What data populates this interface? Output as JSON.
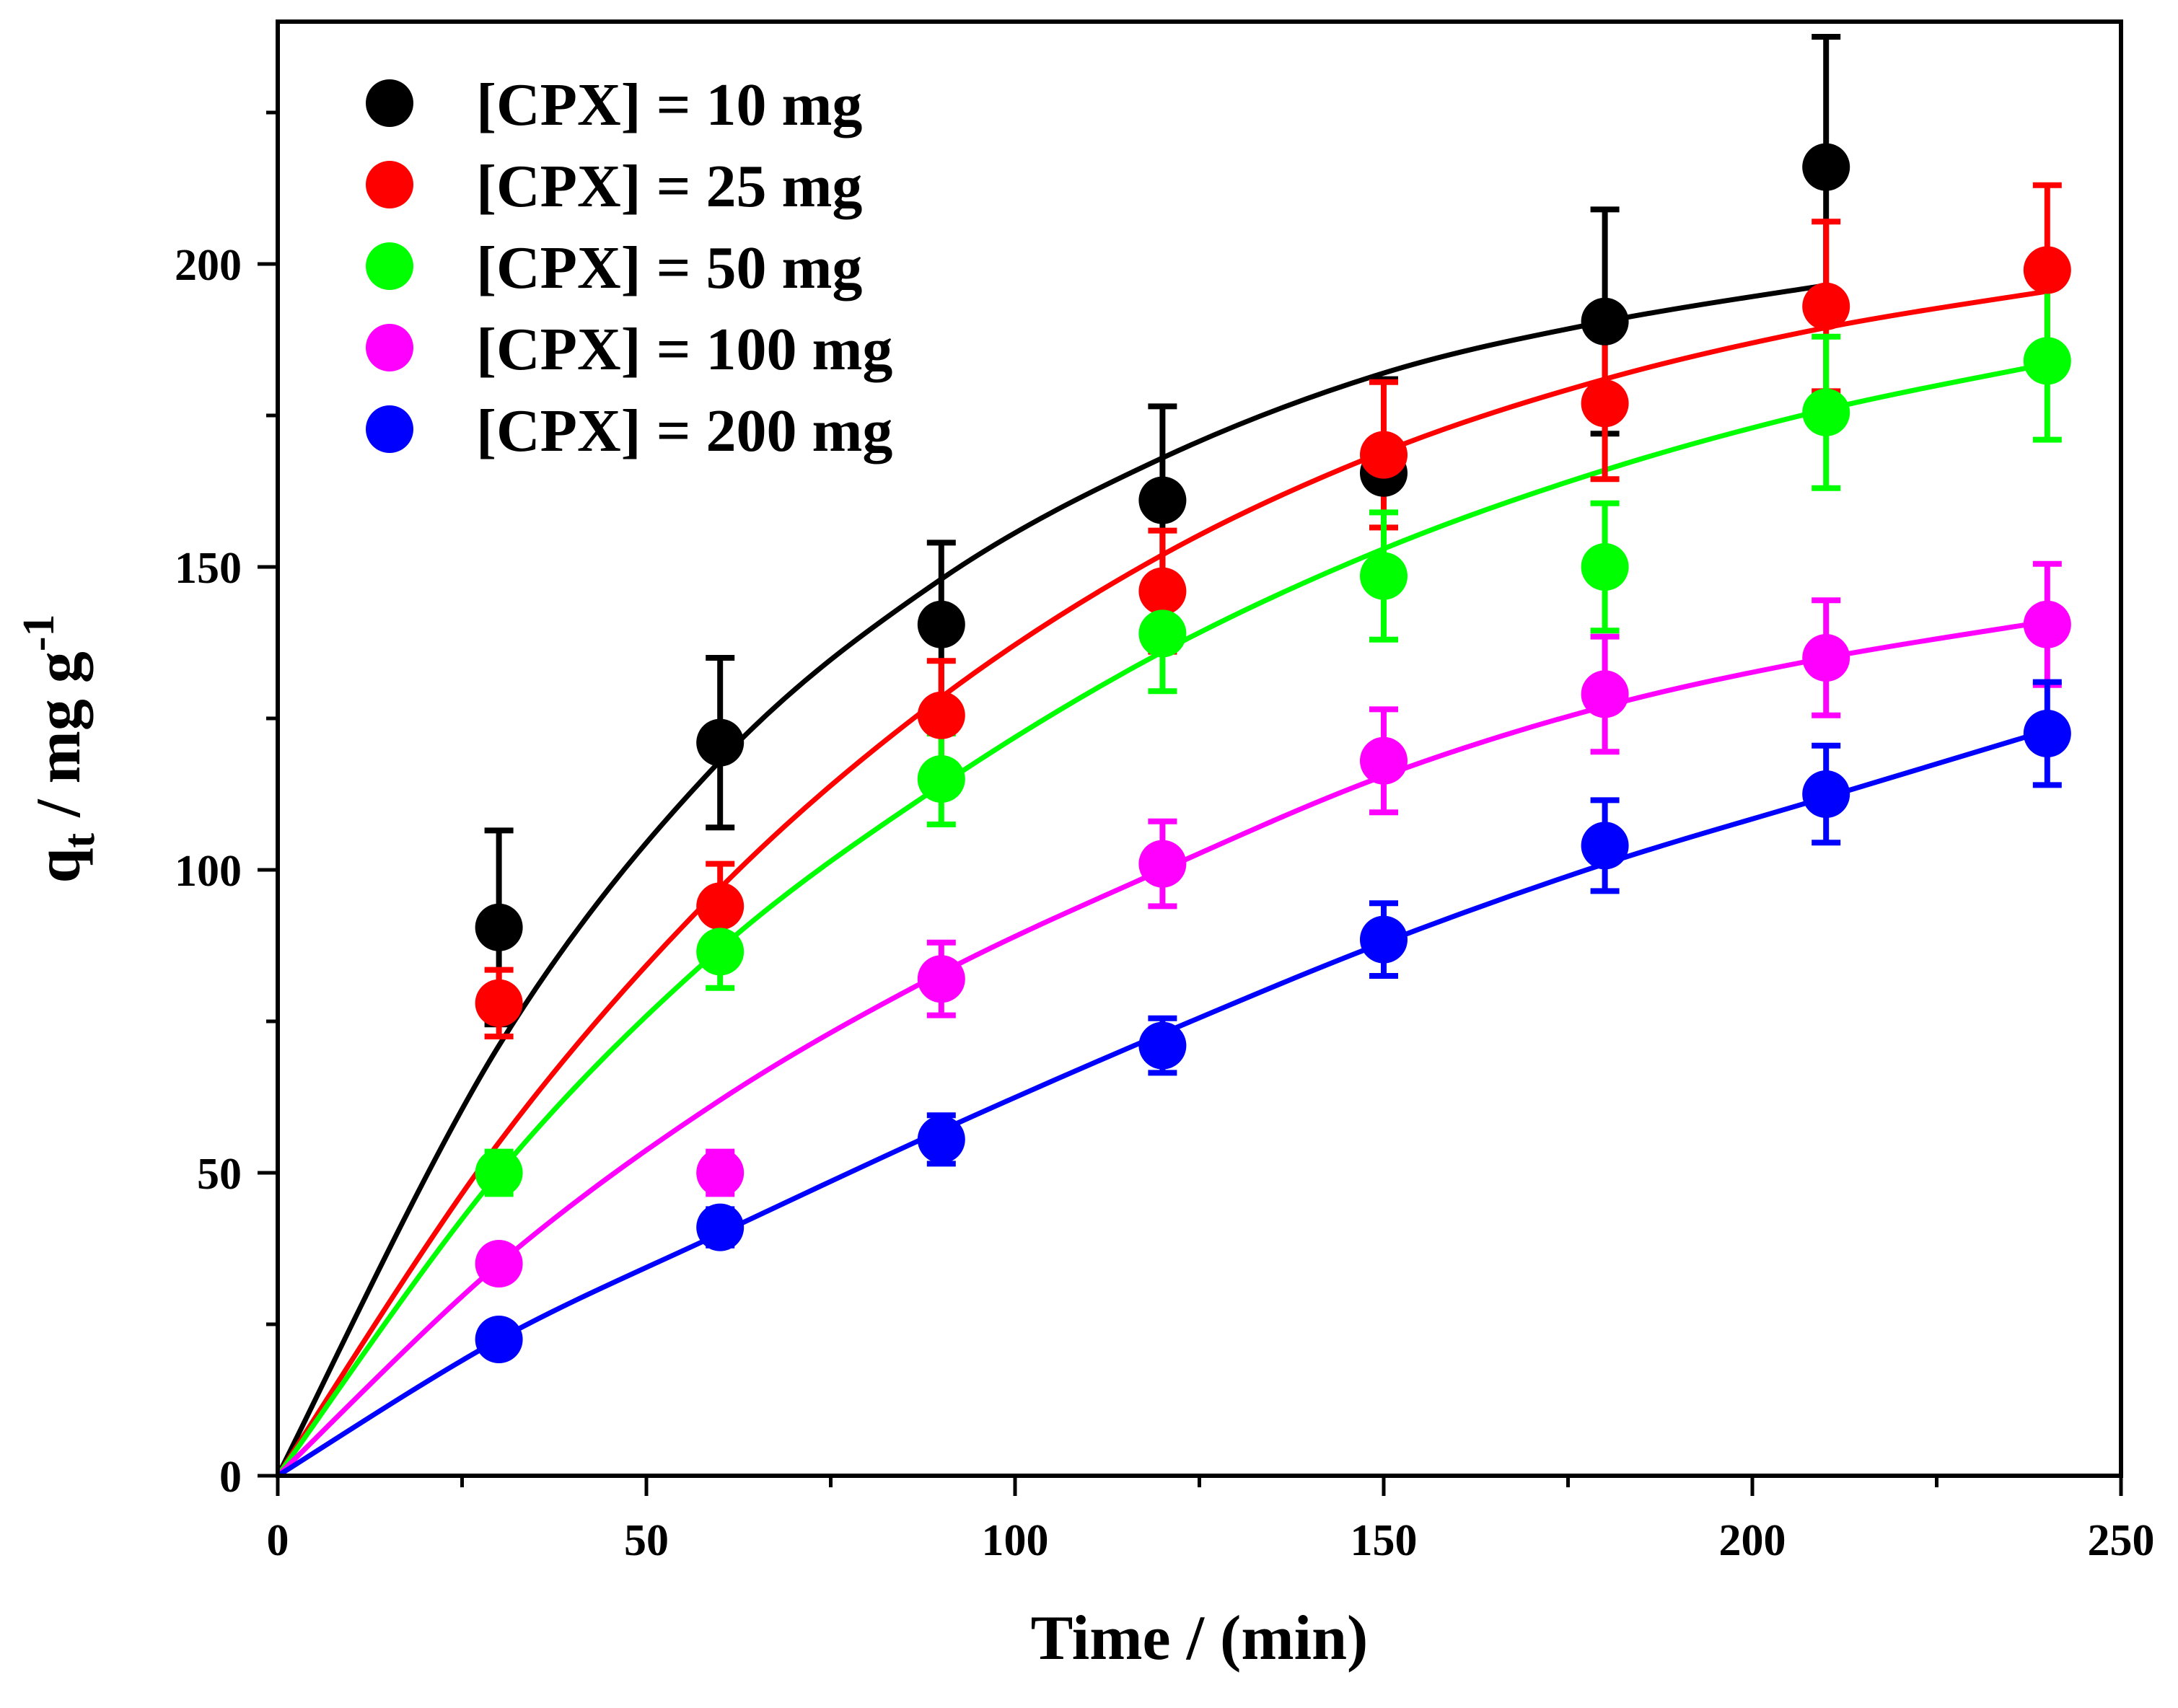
{
  "chart_data": {
    "type": "scatter",
    "xlabel": "Time / (min)",
    "ylabel": {
      "main": "q",
      "sub": "t",
      "rest": " / mg g",
      "sup": "-1"
    },
    "xlim": [
      0,
      250
    ],
    "ylim": [
      0,
      240
    ],
    "xticks": [
      0,
      50,
      100,
      150,
      200,
      250
    ],
    "yticks": [
      0,
      50,
      100,
      150,
      200
    ],
    "grid": false,
    "legend_position": "top-left",
    "series": [
      {
        "name": "[CPX] = 10 mg",
        "color": "#000000",
        "x": [
          30,
          60,
          90,
          120,
          150,
          180,
          210
        ],
        "y": [
          90.5,
          121,
          140.5,
          161,
          165.5,
          190.5,
          216
        ],
        "err": [
          16,
          14,
          13.5,
          15.5,
          15.5,
          18.5,
          21.5
        ],
        "fit_x": [
          0,
          30,
          60,
          90,
          120,
          150,
          180,
          210
        ],
        "fit_y": [
          0,
          71,
          118,
          148,
          168,
          182,
          190.5,
          196.5
        ]
      },
      {
        "name": "[CPX] = 25 mg",
        "color": "#ff0000",
        "x": [
          30,
          60,
          90,
          120,
          150,
          180,
          210,
          240
        ],
        "y": [
          78,
          94,
          125.5,
          146,
          168.5,
          177,
          193,
          199
        ],
        "err": [
          5.5,
          7,
          9,
          10,
          12,
          12.5,
          14,
          14
        ],
        "fit_x": [
          0,
          30,
          60,
          90,
          120,
          150,
          180,
          210,
          240
        ],
        "fit_y": [
          0,
          55,
          97,
          128.5,
          152,
          169,
          181,
          189.5,
          195.5
        ]
      },
      {
        "name": "[CPX] = 50 mg",
        "color": "#00ff00",
        "x": [
          30,
          60,
          90,
          120,
          150,
          180,
          210,
          240
        ],
        "y": [
          50,
          86.5,
          115,
          139,
          148.5,
          150,
          175.5,
          184
        ],
        "err": [
          3.5,
          6,
          7.5,
          9.5,
          10.5,
          10.5,
          12.5,
          13
        ],
        "fit_x": [
          0,
          30,
          60,
          90,
          120,
          150,
          180,
          210,
          240
        ],
        "fit_y": [
          0,
          50,
          87,
          114,
          136,
          153,
          166,
          176,
          183.5
        ]
      },
      {
        "name": "[CPX] = 100 mg",
        "color": "#ff00ff",
        "x": [
          30,
          60,
          90,
          120,
          150,
          180,
          210,
          240
        ],
        "y": [
          35,
          50,
          82,
          101,
          118,
          129,
          135,
          140.5
        ],
        "err": [
          2.5,
          3.5,
          6,
          7,
          8.5,
          9.5,
          9.5,
          10
        ],
        "fit_x": [
          0,
          30,
          60,
          90,
          120,
          150,
          180,
          210,
          240
        ],
        "fit_y": [
          0,
          35,
          62,
          83,
          100,
          115.5,
          127,
          135,
          141
        ]
      },
      {
        "name": "[CPX] = 200 mg",
        "color": "#0000ff",
        "x": [
          30,
          60,
          90,
          120,
          150,
          180,
          210,
          240
        ],
        "y": [
          22.5,
          41,
          55.5,
          71,
          88.5,
          104,
          112.5,
          122.5
        ],
        "err": [
          2,
          3,
          4,
          4.5,
          6,
          7.5,
          8,
          8.5
        ],
        "fit_x": [
          0,
          30,
          60,
          90,
          120,
          150,
          180,
          210,
          240
        ],
        "fit_y": [
          0,
          22.5,
          40,
          57,
          73,
          88,
          101,
          112,
          123
        ]
      }
    ]
  }
}
